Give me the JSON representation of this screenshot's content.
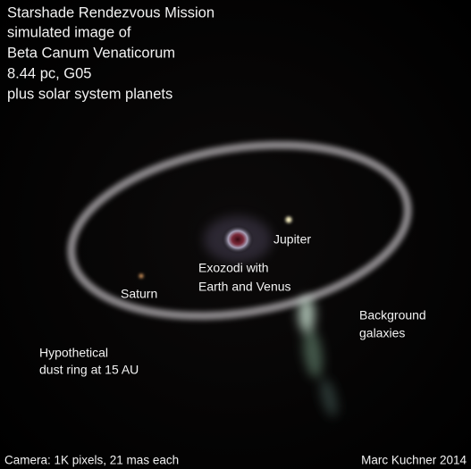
{
  "title_lines": [
    "Starshade Rendezvous Mission",
    "simulated image of",
    "Beta Canum Venaticorum",
    "8.44 pc, G05",
    "plus solar system planets"
  ],
  "labels": {
    "jupiter": "Jupiter",
    "exozodi": [
      "Exozodi with",
      "Earth and Venus"
    ],
    "saturn": "Saturn",
    "galaxies": [
      "Background",
      "galaxies"
    ],
    "ring": [
      "Hypothetical",
      "dust ring at 15 AU"
    ]
  },
  "footer": {
    "camera": "Camera: 1K pixels, 21 mas each",
    "credit": "Marc Kuchner 2014"
  }
}
